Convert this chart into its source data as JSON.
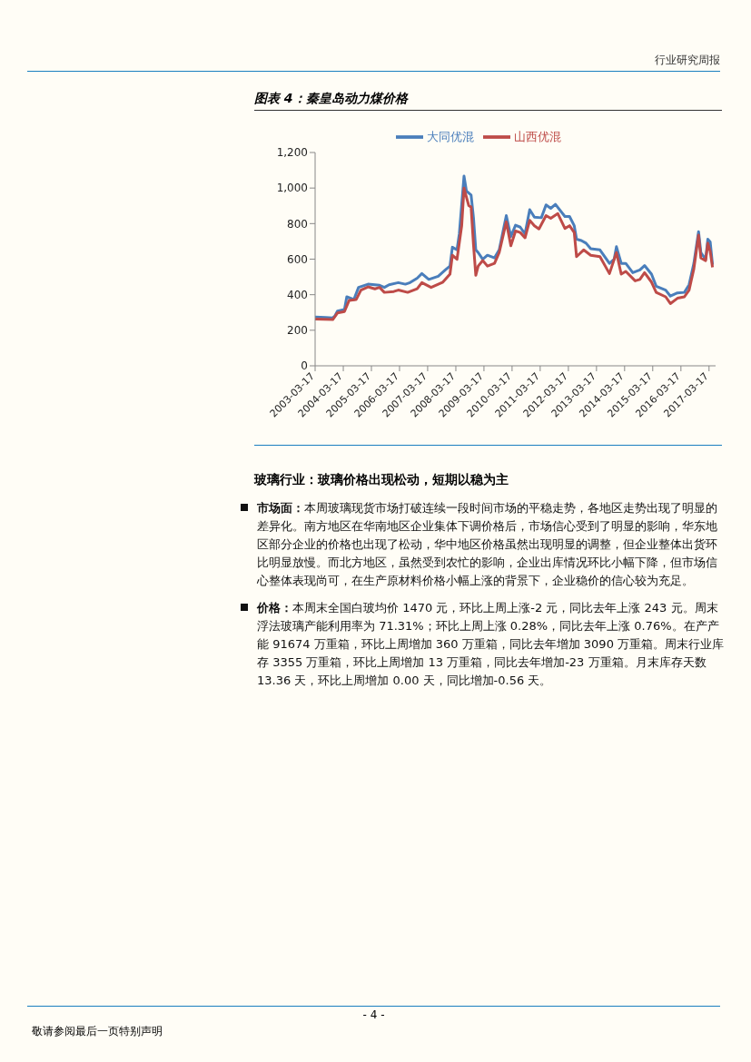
{
  "chart_data": {
    "type": "line",
    "title": "图表 4：秦皇岛动力煤价格",
    "xlim": [
      "2003-03-17",
      "2017-06-10"
    ],
    "xticks": [
      "2003-03-17",
      "2004-03-17",
      "2005-03-17",
      "2006-03-17",
      "2007-03-17",
      "2008-03-17",
      "2009-03-17",
      "2010-03-17",
      "2011-03-17",
      "2012-03-17",
      "2013-03-17",
      "2014-03-17",
      "2015-03-17",
      "2016-03-17",
      "2017-03-17"
    ],
    "ylim": [
      0,
      1200
    ],
    "yticks": [
      0,
      200,
      400,
      600,
      800,
      {
        "value": 1000,
        "label": "1,000"
      },
      {
        "value": 1200,
        "label": "1,200"
      }
    ],
    "legend": "top",
    "marker": "none",
    "line_style": "solid",
    "series": [
      {
        "name": "大同优混",
        "color": "#4a7ebb",
        "x": [
          "2003-03-17",
          "2003-08",
          "2003-11",
          "2003-12",
          "2004-01",
          "2004-04",
          "2004-05",
          "2004-08",
          "2004-10",
          "2005-02",
          "2005-07",
          "2005-09",
          "2005-11",
          "2006-03",
          "2006-06",
          "2006-08",
          "2006-11",
          "2007-01",
          "2007-04",
          "2007-08",
          "2007-11",
          "2008-01",
          "2008-02",
          "2008-04",
          "2008-05",
          "2008-07",
          "2008-08",
          "2008-10",
          "2008-11",
          "2008-12",
          "2009-01",
          "2009-03",
          "2009-05",
          "2009-08",
          "2009-10",
          "2010-01",
          "2010-03",
          "2010-05",
          "2010-07",
          "2010-09",
          "2010-11",
          "2011-01",
          "2011-04",
          "2011-06",
          "2011-08",
          "2011-10",
          "2012-02",
          "2012-04",
          "2012-06",
          "2012-07",
          "2012-09",
          "2012-11",
          "2013-01",
          "2013-05",
          "2013-09",
          "2013-11",
          "2013-12",
          "2014-02",
          "2014-04",
          "2014-07",
          "2014-10",
          "2014-12",
          "2015-03",
          "2015-05",
          "2015-09",
          "2015-11",
          "2016-02",
          "2016-05",
          "2016-07",
          "2016-09",
          "2016-11",
          "2016-12",
          "2017-02",
          "2017-03",
          "2017-04",
          "2017-05"
        ],
        "values": [
          275,
          272,
          270,
          282,
          308,
          317,
          388,
          373,
          441,
          459,
          453,
          441,
          456,
          468,
          459,
          468,
          493,
          519,
          486,
          504,
          539,
          561,
          667,
          652,
          742,
          1067,
          984,
          961,
          833,
          652,
          637,
          599,
          622,
          607,
          652,
          845,
          727,
          791,
          780,
          742,
          878,
          836,
          833,
          905,
          886,
          908,
          840,
          840,
          788,
          712,
          705,
          690,
          659,
          652,
          576,
          599,
          670,
          576,
          576,
          524,
          539,
          564,
          516,
          448,
          426,
          392,
          410,
          413,
          456,
          576,
          755,
          637,
          599,
          712,
          697,
          569
        ]
      },
      {
        "name": "山西优混",
        "color": "#be4b48",
        "x": [
          "2003-03-17",
          "2003-11",
          "2004-01",
          "2004-04",
          "2004-06",
          "2004-09",
          "2004-11",
          "2005-02",
          "2005-05",
          "2005-07",
          "2005-09",
          "2006-01",
          "2006-03",
          "2006-07",
          "2006-11",
          "2007-01",
          "2007-05",
          "2007-10",
          "2008-01",
          "2008-02",
          "2008-04",
          "2008-06",
          "2008-07",
          "2008-09",
          "2008-10",
          "2008-11",
          "2008-12",
          "2009-01",
          "2009-03",
          "2009-05",
          "2009-08",
          "2009-10",
          "2010-01",
          "2010-03",
          "2010-05",
          "2010-07",
          "2010-09",
          "2010-11",
          "2011-01",
          "2011-03",
          "2011-06",
          "2011-08",
          "2011-11",
          "2012-02",
          "2012-04",
          "2012-06",
          "2012-07",
          "2012-10",
          "2013-01",
          "2013-05",
          "2013-09",
          "2013-12",
          "2014-02",
          "2014-04",
          "2014-08",
          "2014-10",
          "2014-12",
          "2015-03",
          "2015-05",
          "2015-09",
          "2015-11",
          "2016-02",
          "2016-05",
          "2016-07",
          "2016-09",
          "2016-11",
          "2016-12",
          "2017-02",
          "2017-03",
          "2017-04",
          "2017-05"
        ],
        "values": [
          263,
          260,
          297,
          305,
          368,
          373,
          426,
          444,
          433,
          441,
          413,
          418,
          426,
          413,
          433,
          468,
          441,
          471,
          516,
          622,
          599,
          788,
          999,
          901,
          893,
          682,
          509,
          561,
          592,
          561,
          576,
          637,
          810,
          675,
          758,
          750,
          720,
          818,
          788,
          770,
          845,
          830,
          856,
          773,
          788,
          750,
          614,
          652,
          622,
          614,
          519,
          637,
          516,
          531,
          478,
          486,
          524,
          471,
          413,
          388,
          350,
          380,
          388,
          426,
          546,
          735,
          607,
          592,
          690,
          644,
          554
        ]
      }
    ],
    "annotations": [
      "行业研究周报",
      "玻璃行业：玻璃价格出现松动，短期以稳为主",
      "市场面：本周玻璃现货市场打破连续一段时间市场的平稳走势，各地区走势出现了明显的差异化。南方地区在华南地区企业集体下调价格后，市场信心受到了明显的影响，华东地区部分企业的价格也出现了松动，华中地区价格虽然出现明显的调整，但企业整体出货环比明显放慢。而北方地区，虽然受到农忙的影响，企业出库情况环比小幅下降，但市场信心整体表现尚可，在生产原材料价格小幅上涨的背景下，企业稳价的信心较为充足。",
      "价格：本周末全国白玻均价 1470 元，环比上周上涨-2 元，同比去年上涨 243 元。周末浮法玻璃产能利用率为 71.31%；环比上周上涨 0.28%，同比去年上涨 0.76%。在产产能 91674 万重箱，环比上周增加 360 万重箱，同比去年增加 3090 万重箱。周末行业库存 3355 万重箱，环比上周增加 13 万重箱，同比去年增加-23 万重箱。月末库存天数 13.36 天，环比上周增加 0.00 天，同比增加-0.56 天。",
      "- 4 -",
      "敬请参阅最后一页特别声明"
    ]
  }
}
